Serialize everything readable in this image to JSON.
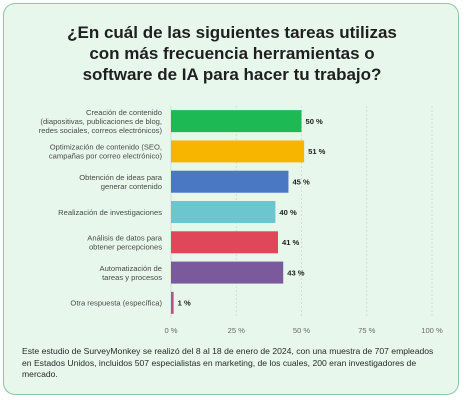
{
  "title_lines": [
    "¿En cuál de las siguientes tareas utilizas",
    "con más frecuencia herramientas o",
    "software de IA para hacer tu trabajo?"
  ],
  "chart_data": {
    "type": "bar",
    "orientation": "horizontal",
    "title": "¿En cuál de las siguientes tareas utilizas con más frecuencia herramientas o software de IA para hacer tu trabajo?",
    "categories": [
      [
        "Creación de contenido",
        "(diapositivas, publicaciones de blog,",
        "redes sociales, correos electrónicos)"
      ],
      [
        "Optimización de contenido (SEO,",
        "campañas por correo electrónico)"
      ],
      [
        "Obtención de ideas para",
        "generar contenido"
      ],
      [
        "Realización de investigaciones"
      ],
      [
        "Análisis de datos para",
        "obtener percepciones"
      ],
      [
        "Automatización de",
        "tareas y procesos"
      ],
      [
        "Otra respuesta (específica)"
      ]
    ],
    "values": [
      50,
      51,
      45,
      40,
      41,
      43,
      1
    ],
    "value_labels": [
      "50 %",
      "51 %",
      "45 %",
      "40 %",
      "41 %",
      "43 %",
      "1 %"
    ],
    "colors": [
      "#1db954",
      "#f7b500",
      "#4a78c2",
      "#6cc6cf",
      "#e0485a",
      "#7a5a9c",
      "#c44a8a"
    ],
    "xlim": [
      0,
      100
    ],
    "xticks": [
      0,
      25,
      50,
      75,
      100
    ],
    "xtick_labels": [
      "0 %",
      "25 %",
      "50 %",
      "75 %",
      "100 %"
    ],
    "grid": true,
    "xlabel": "",
    "ylabel": ""
  },
  "footnote": "Este estudio de SurveyMonkey se realizó del 8 al 18 de enero de 2024, con una muestra de 707 empleados en Estados Unidos, incluidos 507 especialistas en marketing, de los cuales, 200 eran investigadores de mercado."
}
